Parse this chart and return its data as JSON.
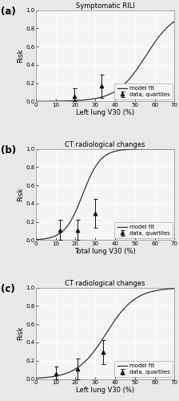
{
  "panels": [
    {
      "label": "(a)",
      "title": "Symptomatic RILI",
      "xlabel": "Left lung V30 (%)",
      "ylabel": "Risk",
      "xlim": [
        0,
        70
      ],
      "ylim": [
        0,
        1.0
      ],
      "xticks": [
        0,
        10,
        20,
        30,
        40,
        50,
        60,
        70
      ],
      "yticks": [
        0.0,
        0.2,
        0.4,
        0.6,
        0.8,
        1.0
      ],
      "logistic_beta0": -7.5,
      "logistic_beta1": 0.135,
      "data_x": [
        19.5,
        33.0
      ],
      "data_y": [
        0.058,
        0.167
      ],
      "data_yerr_lo": [
        0.058,
        0.13
      ],
      "data_yerr_hi": [
        0.09,
        0.13
      ]
    },
    {
      "label": "(b)",
      "title": "CT radiological changes",
      "xlabel": "Total lung V30 (%)",
      "ylabel": "Risk",
      "xlim": [
        0,
        70
      ],
      "ylim": [
        0,
        1.0
      ],
      "xticks": [
        0,
        10,
        20,
        30,
        40,
        50,
        60,
        70
      ],
      "yticks": [
        0.0,
        0.2,
        0.4,
        0.6,
        0.8,
        1.0
      ],
      "logistic_beta0": -5.2,
      "logistic_beta1": 0.22,
      "data_x": [
        12.0,
        21.0,
        30.0
      ],
      "data_y": [
        0.111,
        0.111,
        0.296
      ],
      "data_yerr_lo": [
        0.111,
        0.111,
        0.16
      ],
      "data_yerr_hi": [
        0.11,
        0.11,
        0.16
      ]
    },
    {
      "label": "(c)",
      "title": "CT radiological changes",
      "xlabel": "Left lung V30 (%)",
      "ylabel": "Risk",
      "xlim": [
        0,
        70
      ],
      "ylim": [
        0,
        1.0
      ],
      "xticks": [
        0,
        10,
        20,
        30,
        40,
        50,
        60,
        70
      ],
      "yticks": [
        0.0,
        0.2,
        0.4,
        0.6,
        0.8,
        1.0
      ],
      "logistic_beta0": -4.8,
      "logistic_beta1": 0.135,
      "data_x": [
        10.0,
        21.0,
        34.0
      ],
      "data_y": [
        0.055,
        0.111,
        0.296
      ],
      "data_yerr_lo": [
        0.055,
        0.111,
        0.13
      ],
      "data_yerr_hi": [
        0.08,
        0.11,
        0.13
      ]
    }
  ],
  "line_color": "#333333",
  "marker_color": "#111111",
  "marker": "^",
  "marker_size": 3.5,
  "legend_fontsize": 5.0,
  "title_fontsize": 6.0,
  "tick_fontsize": 5.0,
  "label_fontsize": 6.0,
  "panel_label_fontsize": 8.5,
  "background_color": "#e8e8e8",
  "plot_bg_color": "#f5f5f5",
  "grid_color": "#ffffff",
  "grid_linewidth": 0.6
}
